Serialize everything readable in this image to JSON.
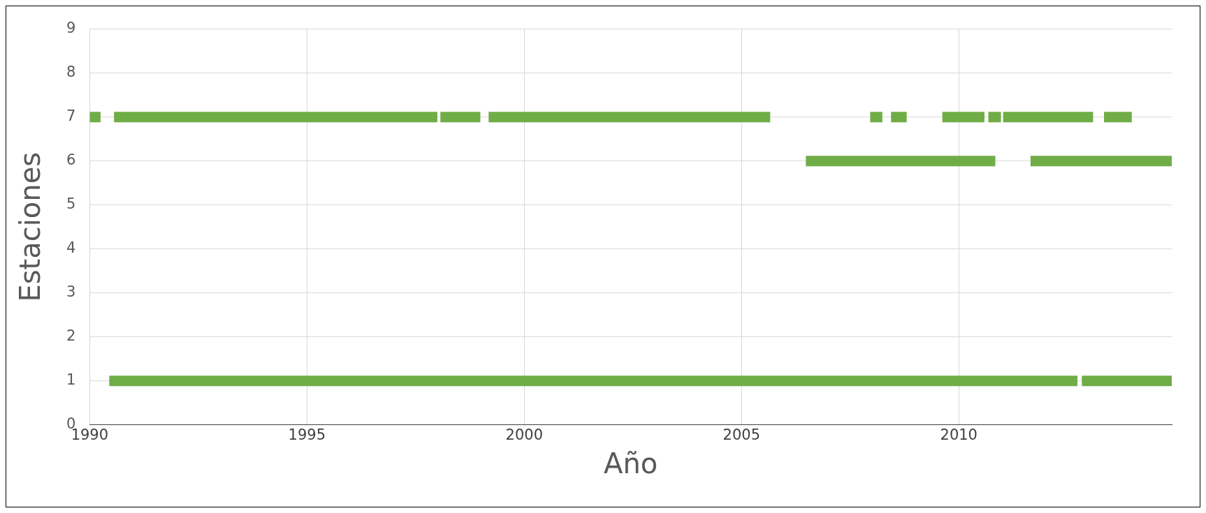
{
  "chart_data": {
    "type": "line",
    "xlabel": "Año",
    "ylabel": "Estaciones",
    "xlim": [
      1990,
      2014.9
    ],
    "xticks": [
      1990,
      1995,
      2000,
      2005,
      2010
    ],
    "ylim": [
      0,
      9
    ],
    "yticks": [
      0,
      1,
      2,
      3,
      4,
      5,
      6,
      7,
      8,
      9
    ],
    "grid": true,
    "legend": false,
    "series": [
      {
        "color": "#70ad47",
        "x": [
          1990.0,
          1990.25,
          1990.4,
          1990.56,
          1998.0,
          1998.03,
          1998.07,
          1998.99,
          1999.1,
          1999.18,
          2005.66,
          2006.8,
          2007.96,
          2008.24,
          2008.3,
          2008.44,
          2008.8,
          2009.2,
          2009.62,
          2010.59,
          2010.63,
          2010.68,
          2010.97,
          2011.0,
          2011.02,
          2013.09,
          2013.2,
          2013.34,
          2013.98
        ],
        "values": [
          7,
          7,
          null,
          7,
          7,
          null,
          7,
          7,
          null,
          7,
          7,
          null,
          7,
          7,
          null,
          7,
          7,
          null,
          7,
          7,
          null,
          7,
          7,
          null,
          7,
          7,
          null,
          7,
          7
        ]
      },
      {
        "color": "#70ad47",
        "x": [
          2006.48,
          2010.84,
          2011.2,
          2011.65,
          2014.9
        ],
        "values": [
          6,
          6,
          null,
          6,
          6
        ]
      },
      {
        "color": "#70ad47",
        "x": [
          1990.45,
          2012.73,
          2012.78,
          2012.83,
          2014.9
        ],
        "values": [
          1,
          1,
          null,
          1,
          1
        ]
      }
    ]
  }
}
